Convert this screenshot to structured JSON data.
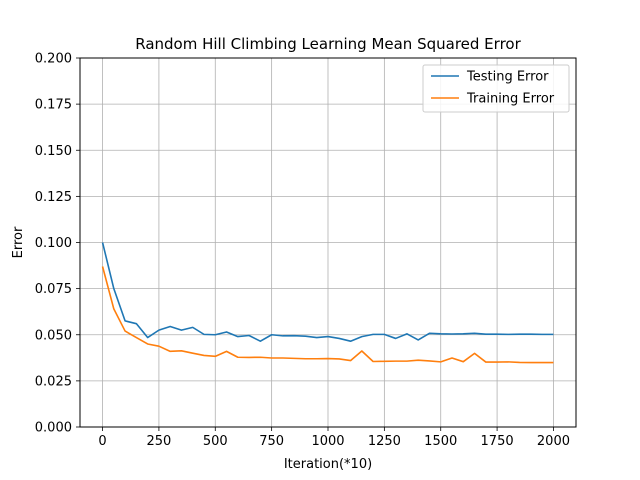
{
  "chart_data": {
    "type": "line",
    "title": "Random Hill Climbing Learning Mean Squared Error",
    "xlabel": "Iteration(*10)",
    "ylabel": "Error",
    "xlim": [
      -100,
      2100
    ],
    "ylim": [
      0.0,
      0.2
    ],
    "xticks": [
      0,
      250,
      500,
      750,
      1000,
      1250,
      1500,
      1750,
      2000
    ],
    "xtick_labels": [
      "0",
      "250",
      "500",
      "750",
      "1000",
      "1250",
      "1500",
      "1750",
      "2000"
    ],
    "yticks": [
      0.0,
      0.025,
      0.05,
      0.075,
      0.1,
      0.125,
      0.15,
      0.175,
      0.2
    ],
    "ytick_labels": [
      "0.000",
      "0.025",
      "0.050",
      "0.075",
      "0.100",
      "0.125",
      "0.150",
      "0.175",
      "0.200"
    ],
    "grid": true,
    "legend_position": "top-right",
    "x": [
      0,
      50,
      100,
      150,
      200,
      250,
      300,
      350,
      400,
      450,
      500,
      550,
      600,
      650,
      700,
      750,
      800,
      850,
      900,
      950,
      1000,
      1050,
      1100,
      1150,
      1200,
      1250,
      1300,
      1350,
      1400,
      1450,
      1500,
      1550,
      1600,
      1650,
      1700,
      1750,
      1800,
      1850,
      1900,
      1950,
      2000
    ],
    "series": [
      {
        "name": "Testing Error",
        "color": "#1f77b4",
        "values": [
          0.1,
          0.075,
          0.0575,
          0.056,
          0.0485,
          0.0525,
          0.0545,
          0.0525,
          0.054,
          0.0502,
          0.05,
          0.0515,
          0.049,
          0.0496,
          0.0465,
          0.05,
          0.0494,
          0.0495,
          0.0492,
          0.0485,
          0.049,
          0.048,
          0.0465,
          0.049,
          0.0502,
          0.0502,
          0.048,
          0.0505,
          0.0472,
          0.0508,
          0.0505,
          0.0504,
          0.0505,
          0.0508,
          0.0503,
          0.0503,
          0.0502,
          0.0503,
          0.0503,
          0.0502,
          0.0502
        ]
      },
      {
        "name": "Training Error",
        "color": "#ff7f0e",
        "values": [
          0.087,
          0.064,
          0.052,
          0.0485,
          0.045,
          0.0438,
          0.041,
          0.0413,
          0.04,
          0.0388,
          0.0383,
          0.041,
          0.0378,
          0.0377,
          0.0378,
          0.0374,
          0.0374,
          0.0372,
          0.037,
          0.037,
          0.0371,
          0.0369,
          0.036,
          0.0412,
          0.0355,
          0.0356,
          0.0357,
          0.0357,
          0.0362,
          0.0358,
          0.0353,
          0.0374,
          0.0354,
          0.0399,
          0.0352,
          0.0352,
          0.0353,
          0.035,
          0.0349,
          0.0349,
          0.0349
        ]
      }
    ]
  }
}
